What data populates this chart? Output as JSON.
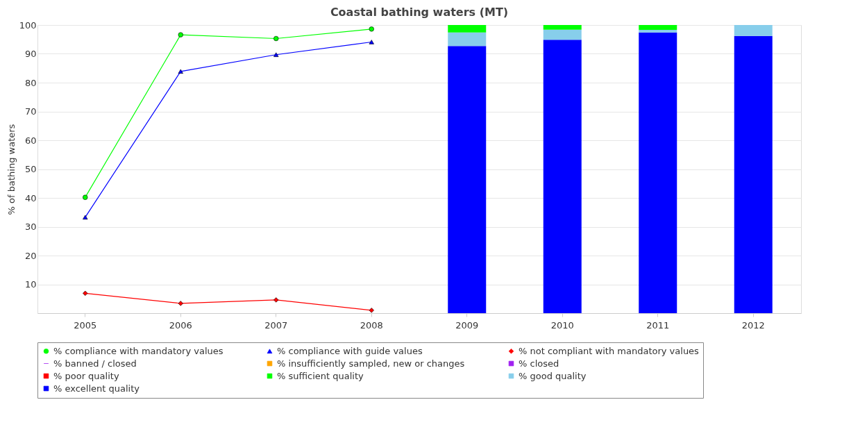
{
  "chart_data": {
    "type": "bar",
    "title": "Coastal bathing waters (MT)",
    "ylabel": "% of bathing waters",
    "categories": [
      "2005",
      "2006",
      "2007",
      "2008",
      "2009",
      "2010",
      "2011",
      "2012"
    ],
    "stacked": true,
    "ylim": [
      0,
      100
    ],
    "yticks": [
      10,
      20,
      30,
      40,
      50,
      60,
      70,
      80,
      90,
      100
    ],
    "grid": "y",
    "legend": "bottom",
    "line_style": "solid",
    "series": [
      {
        "name": "% compliance with mandatory values",
        "type": "line",
        "marker": "circle",
        "color": "#00ff00",
        "values": [
          40.2,
          96.6,
          95.3,
          98.6,
          null,
          null,
          null,
          null
        ]
      },
      {
        "name": "% compliance with guide values",
        "type": "line",
        "marker": "triangle",
        "color": "#0000ff",
        "values": [
          33.3,
          83.9,
          89.7,
          94.1,
          null,
          null,
          null,
          null
        ]
      },
      {
        "name": "% not compliant with mandatory values",
        "type": "line",
        "marker": "diamond",
        "color": "#ff0000",
        "values": [
          6.9,
          3.4,
          4.6,
          1.0,
          null,
          null,
          null,
          null
        ]
      },
      {
        "name": "% banned / closed",
        "type": "line",
        "marker": "none",
        "color": "#a020f0",
        "values": [
          null,
          null,
          null,
          null,
          null,
          null,
          null,
          null
        ]
      },
      {
        "name": "% excellent quality",
        "color": "#0000ff",
        "values": [
          null,
          null,
          null,
          null,
          92.7,
          94.9,
          97.4,
          96.2
        ]
      },
      {
        "name": "% good quality",
        "color": "#87ceeb",
        "values": [
          null,
          null,
          null,
          null,
          4.7,
          3.5,
          0.9,
          3.8
        ]
      },
      {
        "name": "% sufficient quality",
        "color": "#00ff00",
        "values": [
          null,
          null,
          null,
          null,
          2.6,
          1.6,
          1.7,
          null
        ]
      },
      {
        "name": "% poor quality",
        "color": "#ff0000",
        "values": [
          null,
          null,
          null,
          null,
          null,
          null,
          null,
          null
        ]
      },
      {
        "name": "% closed",
        "color": "#a020f0",
        "values": [
          null,
          null,
          null,
          null,
          null,
          null,
          null,
          null
        ]
      },
      {
        "name": "% insufficiently sampled, new or changes",
        "color": "#ffa500",
        "values": [
          null,
          null,
          null,
          null,
          null,
          null,
          null,
          null
        ]
      }
    ]
  }
}
